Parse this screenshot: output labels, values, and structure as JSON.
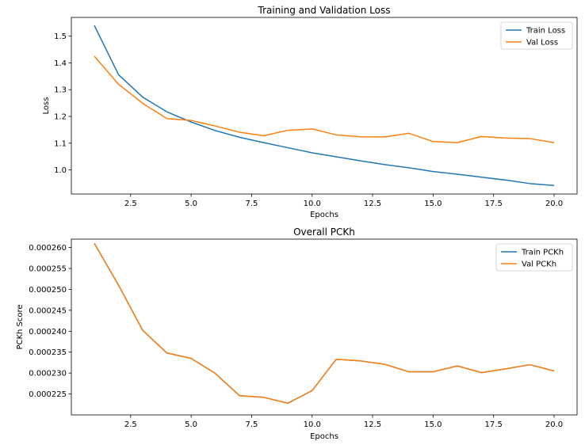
{
  "chart_data": [
    {
      "type": "line",
      "title": "Training and Validation Loss",
      "xlabel": "Epochs",
      "ylabel": "Loss",
      "x": [
        1,
        2,
        3,
        4,
        5,
        6,
        7,
        8,
        9,
        10,
        11,
        12,
        13,
        14,
        15,
        16,
        17,
        18,
        19,
        20
      ],
      "xlim": [
        0.05,
        20.95
      ],
      "ylim": [
        0.91,
        1.57
      ],
      "xticks": [
        2.5,
        5.0,
        7.5,
        10.0,
        12.5,
        15.0,
        17.5,
        20.0
      ],
      "xtick_labels": [
        "2.5",
        "5.0",
        "7.5",
        "10.0",
        "12.5",
        "15.0",
        "17.5",
        "20.0"
      ],
      "yticks": [
        1.0,
        1.1,
        1.2,
        1.3,
        1.4,
        1.5
      ],
      "ytick_labels": [
        "1.0",
        "1.1",
        "1.2",
        "1.3",
        "1.4",
        "1.5"
      ],
      "legend_position": "top-right",
      "series": [
        {
          "name": "Train Loss",
          "color": "#1f77b4",
          "values": [
            1.54,
            1.356,
            1.272,
            1.217,
            1.179,
            1.147,
            1.122,
            1.102,
            1.083,
            1.064,
            1.049,
            1.034,
            1.02,
            1.008,
            0.994,
            0.984,
            0.973,
            0.962,
            0.949,
            0.942
          ]
        },
        {
          "name": "Val Loss",
          "color": "#ff7f0e",
          "values": [
            1.425,
            1.32,
            1.249,
            1.192,
            1.185,
            1.164,
            1.141,
            1.128,
            1.148,
            1.153,
            1.131,
            1.124,
            1.123,
            1.137,
            1.106,
            1.102,
            1.125,
            1.119,
            1.117,
            1.102
          ]
        }
      ]
    },
    {
      "type": "line",
      "title": "Overall PCKh",
      "xlabel": "Epochs",
      "ylabel": "PCKh Score",
      "x": [
        1,
        2,
        3,
        4,
        5,
        6,
        7,
        8,
        9,
        10,
        11,
        12,
        13,
        14,
        15,
        16,
        17,
        18,
        19,
        20
      ],
      "xlim": [
        0.05,
        20.95
      ],
      "ylim": [
        0.00022,
        0.000262
      ],
      "xticks": [
        2.5,
        5.0,
        7.5,
        10.0,
        12.5,
        15.0,
        17.5,
        20.0
      ],
      "xtick_labels": [
        "2.5",
        "5.0",
        "7.5",
        "10.0",
        "12.5",
        "15.0",
        "17.5",
        "20.0"
      ],
      "yticks": [
        0.000225,
        0.00023,
        0.000235,
        0.00024,
        0.000245,
        0.00025,
        0.000255,
        0.00026
      ],
      "ytick_labels": [
        "0.000225",
        "0.000230",
        "0.000235",
        "0.000240",
        "0.000245",
        "0.000250",
        "0.000255",
        "0.000260"
      ],
      "legend_position": "top-right",
      "series": [
        {
          "name": "Train PCKh",
          "color": "#1f77b4",
          "values": [
            0.000261,
            0.000251,
            0.0002402,
            0.0002348,
            0.0002335,
            0.0002299,
            0.0002246,
            0.0002242,
            0.0002228,
            0.0002258,
            0.0002333,
            0.0002329,
            0.0002321,
            0.0002303,
            0.0002303,
            0.0002317,
            0.0002301,
            0.000231,
            0.000232,
            0.0002305
          ]
        },
        {
          "name": "Val PCKh",
          "color": "#ff7f0e",
          "values": [
            0.000261,
            0.000251,
            0.0002402,
            0.0002348,
            0.0002335,
            0.0002299,
            0.0002246,
            0.0002242,
            0.0002228,
            0.0002258,
            0.0002333,
            0.0002329,
            0.0002321,
            0.0002303,
            0.0002303,
            0.0002317,
            0.0002301,
            0.000231,
            0.000232,
            0.0002305
          ]
        }
      ]
    }
  ]
}
